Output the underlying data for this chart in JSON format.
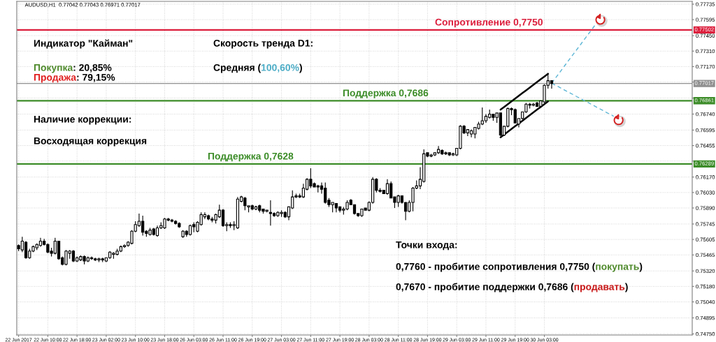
{
  "chart_data": {
    "type": "candlestick",
    "title": "AUDUSD,H1  0.77042 0.77043 0.76971 0.77017",
    "color": "#000000",
    "categories": [
      "22 Jun 2017",
      null,
      null,
      null,
      null,
      null,
      null,
      null,
      "22 Jun 10:00",
      null,
      null,
      null,
      null,
      null,
      null,
      null,
      "22 Jun 18:00",
      null,
      null,
      null,
      null,
      null,
      null,
      null,
      "23 Jun 02:00",
      null,
      null,
      null,
      null,
      null,
      null,
      null,
      "23 Jun 10:00",
      null,
      null,
      null,
      null,
      null,
      null,
      null,
      "23 Jun 18:00",
      null,
      null,
      null,
      null,
      null,
      null,
      null,
      "26 Jun 03:00",
      null,
      null,
      null,
      null,
      null,
      null,
      null,
      "26 Jun 11:00",
      null,
      null,
      null,
      null,
      null,
      null,
      null,
      "26 Jun 19:00",
      null,
      null,
      null,
      null,
      null,
      null,
      null,
      "27 Jun 03:00",
      null,
      null,
      null,
      null,
      null,
      null,
      null,
      "27 Jun 11:00",
      null,
      null,
      null,
      null,
      null,
      null,
      null,
      "27 Jun 19:00",
      null,
      null,
      null,
      null,
      null,
      null,
      null,
      "28 Jun 03:00",
      null,
      null,
      null,
      null,
      null,
      null,
      null,
      "28 Jun 11:00",
      null,
      null,
      null,
      null,
      null,
      null,
      null,
      "28 Jun 19:00",
      null,
      null,
      null,
      null,
      null,
      null,
      null,
      "29 Jun 03:00",
      null,
      null,
      null,
      null,
      null,
      null,
      null,
      "29 Jun 11:00",
      null,
      null,
      null,
      null,
      null,
      null,
      null,
      "29 Jun 19:00",
      null,
      null,
      null,
      null,
      null,
      null,
      null,
      "30 Jun 03:00",
      null,
      null,
      null,
      null,
      null,
      null,
      null,
      null,
      null,
      null,
      null,
      null,
      null,
      null,
      null,
      null,
      null,
      null,
      null,
      null,
      null,
      null,
      null,
      null,
      null,
      null,
      null,
      null,
      null,
      null,
      null,
      null,
      null,
      null,
      null,
      null,
      null,
      null,
      null,
      null
    ],
    "ohlc": [
      [
        0.7555,
        0.7556,
        0.755,
        0.7552
      ],
      [
        0.7551,
        0.7563,
        0.7549,
        0.7559
      ],
      [
        0.7558,
        0.7559,
        0.7543,
        0.7544
      ],
      [
        0.7544,
        0.7552,
        0.7543,
        0.755
      ],
      [
        0.755,
        0.7555,
        0.7549,
        0.7554
      ],
      [
        0.7553,
        0.7557,
        0.7551,
        0.7556
      ],
      [
        0.7555,
        0.7562,
        0.7554,
        0.7559
      ],
      [
        0.7559,
        0.7561,
        0.7555,
        0.7556
      ],
      [
        0.7556,
        0.7557,
        0.7548,
        0.7549
      ],
      [
        0.755,
        0.7553,
        0.7545,
        0.7548
      ],
      [
        0.7548,
        0.7562,
        0.7547,
        0.7559
      ],
      [
        0.7559,
        0.7559,
        0.7542,
        0.7543
      ],
      [
        0.7544,
        0.7545,
        0.7537,
        0.7538
      ],
      [
        0.7538,
        0.7551,
        0.7537,
        0.755
      ],
      [
        0.7548,
        0.7551,
        0.7543,
        0.755
      ],
      [
        0.755,
        0.7551,
        0.754,
        0.7541
      ],
      [
        0.7541,
        0.7545,
        0.754,
        0.7544
      ],
      [
        0.7542,
        0.7546,
        0.7541,
        0.7545
      ],
      [
        0.7545,
        0.7546,
        0.7538,
        0.7541
      ],
      [
        0.7541,
        0.7545,
        0.754,
        0.7544
      ],
      [
        0.7544,
        0.7545,
        0.7542,
        0.7543
      ],
      [
        0.7543,
        0.7544,
        0.7541,
        0.7542
      ],
      [
        0.7542,
        0.7544,
        0.754,
        0.7543
      ],
      [
        0.7543,
        0.7544,
        0.754,
        0.7542
      ],
      [
        0.7541,
        0.7544,
        0.754,
        0.7544
      ],
      [
        0.7544,
        0.755,
        0.7543,
        0.7549
      ],
      [
        0.7547,
        0.7549,
        0.7543,
        0.7548
      ],
      [
        0.7547,
        0.7552,
        0.7546,
        0.755
      ],
      [
        0.755,
        0.7555,
        0.7549,
        0.7554
      ],
      [
        0.7554,
        0.7556,
        0.7553,
        0.7555
      ],
      [
        0.7555,
        0.7559,
        0.7554,
        0.7558
      ],
      [
        0.7557,
        0.7569,
        0.7556,
        0.7568
      ],
      [
        0.7568,
        0.7577,
        0.7567,
        0.7574
      ],
      [
        0.7573,
        0.7584,
        0.7572,
        0.7577
      ],
      [
        0.7577,
        0.7582,
        0.7564,
        0.7567
      ],
      [
        0.7568,
        0.7569,
        0.7563,
        0.7566
      ],
      [
        0.7565,
        0.7571,
        0.7564,
        0.7569
      ],
      [
        0.757,
        0.7571,
        0.7564,
        0.7565
      ],
      [
        0.7564,
        0.7573,
        0.7563,
        0.7571
      ],
      [
        0.7571,
        0.7576,
        0.757,
        0.7573
      ],
      [
        0.7571,
        0.758,
        0.757,
        0.7579
      ],
      [
        0.7579,
        0.758,
        0.7577,
        0.7578
      ],
      [
        0.7578,
        0.7579,
        0.7576,
        0.7577
      ],
      [
        0.7577,
        0.7578,
        0.7574,
        0.7575
      ],
      [
        0.7575,
        0.7576,
        0.7571,
        0.7572
      ],
      [
        0.7563,
        0.7569,
        0.7562,
        0.7568
      ],
      [
        0.7568,
        0.7569,
        0.7563,
        0.7565
      ],
      [
        0.7565,
        0.7574,
        0.7564,
        0.7573
      ],
      [
        0.7574,
        0.7576,
        0.7567,
        0.7572
      ],
      [
        0.7568,
        0.7577,
        0.7567,
        0.7576
      ],
      [
        0.7574,
        0.7585,
        0.7573,
        0.7583
      ],
      [
        0.7581,
        0.7585,
        0.7579,
        0.7583
      ],
      [
        0.7582,
        0.7583,
        0.7578,
        0.7579
      ],
      [
        0.7579,
        0.7581,
        0.7576,
        0.7578
      ],
      [
        0.7578,
        0.7584,
        0.7575,
        0.7583
      ],
      [
        0.7581,
        0.7592,
        0.758,
        0.7587
      ],
      [
        0.7587,
        0.7588,
        0.7572,
        0.7573
      ],
      [
        0.7573,
        0.7576,
        0.7568,
        0.7574
      ],
      [
        0.7574,
        0.7576,
        0.7571,
        0.7573
      ],
      [
        0.7573,
        0.7577,
        0.7569,
        0.7574
      ],
      [
        0.7571,
        0.7599,
        0.757,
        0.7597
      ],
      [
        0.7595,
        0.76,
        0.7594,
        0.7599
      ],
      [
        0.7598,
        0.7599,
        0.7587,
        0.7591
      ],
      [
        0.759,
        0.7591,
        0.7585,
        0.7591
      ],
      [
        0.7591,
        0.7592,
        0.7587,
        0.7588
      ],
      [
        0.7588,
        0.7591,
        0.7587,
        0.759
      ],
      [
        0.7591,
        0.7592,
        0.7585,
        0.7587
      ],
      [
        0.7588,
        0.7588,
        0.7584,
        0.7586
      ],
      [
        0.7586,
        0.7587,
        0.7585,
        0.7587
      ],
      [
        0.7585,
        0.7596,
        0.7573,
        0.7584
      ],
      [
        0.7584,
        0.7585,
        0.7581,
        0.7582
      ],
      [
        0.7582,
        0.7586,
        0.7581,
        0.7585
      ],
      [
        0.7584,
        0.7587,
        0.7581,
        0.7585
      ],
      [
        0.7585,
        0.7586,
        0.758,
        0.7581
      ],
      [
        0.7581,
        0.759,
        0.7578,
        0.759
      ],
      [
        0.7589,
        0.7605,
        0.7588,
        0.7599
      ],
      [
        0.7599,
        0.7602,
        0.7598,
        0.76
      ],
      [
        0.76,
        0.7602,
        0.7598,
        0.7599
      ],
      [
        0.7599,
        0.7611,
        0.7598,
        0.7607
      ],
      [
        0.7606,
        0.7616,
        0.7605,
        0.7615
      ],
      [
        0.7615,
        0.7625,
        0.7607,
        0.7609
      ],
      [
        0.7611,
        0.7612,
        0.7608,
        0.7608
      ],
      [
        0.7609,
        0.761,
        0.7603,
        0.7608
      ],
      [
        0.7609,
        0.7612,
        0.7602,
        0.7606
      ],
      [
        0.7607,
        0.7612,
        0.7593,
        0.7594
      ],
      [
        0.7596,
        0.7598,
        0.759,
        0.7592
      ],
      [
        0.7592,
        0.7594,
        0.7585,
        0.7594
      ],
      [
        0.7593,
        0.7593,
        0.7585,
        0.7589
      ],
      [
        0.759,
        0.759,
        0.7585,
        0.7587
      ],
      [
        0.7587,
        0.759,
        0.7583,
        0.7588
      ],
      [
        0.7588,
        0.7596,
        0.7587,
        0.7594
      ],
      [
        0.7596,
        0.7597,
        0.7592,
        0.7592
      ],
      [
        0.7592,
        0.7592,
        0.7583,
        0.7584
      ],
      [
        0.7584,
        0.7584,
        0.7581,
        0.7582
      ],
      [
        0.7582,
        0.7588,
        0.7581,
        0.7588
      ],
      [
        0.7589,
        0.7589,
        0.7587,
        0.7587
      ],
      [
        0.7587,
        0.7595,
        0.7586,
        0.7594
      ],
      [
        0.7594,
        0.7617,
        0.7593,
        0.7615
      ],
      [
        0.7615,
        0.7616,
        0.7603,
        0.7605
      ],
      [
        0.7605,
        0.7607,
        0.7603,
        0.7604
      ],
      [
        0.7605,
        0.7605,
        0.7602,
        0.7602
      ],
      [
        0.7602,
        0.7615,
        0.7601,
        0.7611
      ],
      [
        0.7611,
        0.7613,
        0.7598,
        0.7598
      ],
      [
        0.7599,
        0.7599,
        0.7589,
        0.7594
      ],
      [
        0.7594,
        0.7601,
        0.759,
        0.76
      ],
      [
        0.76,
        0.76,
        0.7593,
        0.7594
      ],
      [
        0.7594,
        0.7594,
        0.7578,
        0.7586
      ],
      [
        0.7586,
        0.7596,
        0.7585,
        0.7594
      ],
      [
        0.7594,
        0.7608,
        0.7586,
        0.7607
      ],
      [
        0.7607,
        0.7614,
        0.7606,
        0.7609
      ],
      [
        0.7609,
        0.7626,
        0.7606,
        0.7615
      ],
      [
        0.7613,
        0.7642,
        0.7612,
        0.7638
      ],
      [
        0.7639,
        0.7639,
        0.7635,
        0.7636
      ],
      [
        0.7636,
        0.7638,
        0.7635,
        0.7637
      ],
      [
        0.7637,
        0.7639,
        0.7636,
        0.7639
      ],
      [
        0.7639,
        0.7645,
        0.7638,
        0.7642
      ],
      [
        0.7641,
        0.7642,
        0.7637,
        0.7638
      ],
      [
        0.7638,
        0.764,
        0.7637,
        0.7639
      ],
      [
        0.7639,
        0.7639,
        0.7636,
        0.7637
      ],
      [
        0.7637,
        0.7639,
        0.7636,
        0.7638
      ],
      [
        0.7637,
        0.7643,
        0.7636,
        0.7643
      ],
      [
        0.7643,
        0.7664,
        0.7642,
        0.7663
      ],
      [
        0.7663,
        0.7664,
        0.7656,
        0.7657
      ],
      [
        0.7657,
        0.766,
        0.7654,
        0.766
      ],
      [
        0.7656,
        0.766,
        0.7653,
        0.7659
      ],
      [
        0.7656,
        0.7662,
        0.7652,
        0.7662
      ],
      [
        0.7661,
        0.7667,
        0.766,
        0.7665
      ],
      [
        0.7665,
        0.768,
        0.7664,
        0.7668
      ],
      [
        0.7668,
        0.7674,
        0.7666,
        0.7672
      ],
      [
        0.7671,
        0.7678,
        0.767,
        0.7674
      ],
      [
        0.7674,
        0.7674,
        0.7668,
        0.7671
      ],
      [
        0.7671,
        0.7675,
        0.7666,
        0.7675
      ],
      [
        0.7675,
        0.7675,
        0.7654,
        0.7655
      ],
      [
        0.7655,
        0.7663,
        0.7654,
        0.7663
      ],
      [
        0.7663,
        0.768,
        0.7662,
        0.7679
      ],
      [
        0.7679,
        0.768,
        0.7673,
        0.7678
      ],
      [
        0.7678,
        0.7679,
        0.7666,
        0.7666
      ],
      [
        0.7665,
        0.767,
        0.7662,
        0.767
      ],
      [
        0.767,
        0.7676,
        0.7669,
        0.7676
      ],
      [
        0.7676,
        0.7684,
        0.7675,
        0.7683
      ],
      [
        0.7683,
        0.7684,
        0.7679,
        0.7682
      ],
      [
        0.7682,
        0.7684,
        0.7681,
        0.7683
      ],
      [
        0.7684,
        0.7685,
        0.7681,
        0.7681
      ],
      [
        0.7681,
        0.7686,
        0.768,
        0.7686
      ],
      [
        0.7685,
        0.7701,
        0.7684,
        0.77
      ],
      [
        0.77,
        0.7711,
        0.7697,
        0.77042
      ],
      [
        0.77042,
        0.77043,
        0.76971,
        0.77017
      ],
      null,
      null,
      null,
      null,
      null,
      null,
      null,
      null,
      null,
      null,
      null,
      null,
      null,
      null,
      null,
      null,
      null,
      null,
      null,
      null,
      null,
      null,
      null,
      null,
      null,
      null,
      null,
      null,
      null,
      null,
      null,
      null,
      null,
      null,
      null,
      null,
      null,
      null
    ],
    "series": [
      {
        "type": "line",
        "color": "#000000",
        "values": [
          null,
          null,
          null,
          null,
          null,
          null,
          null,
          null,
          null,
          null,
          null,
          null,
          null,
          null,
          null,
          null,
          null,
          null,
          null,
          null,
          null,
          null,
          null,
          null,
          null,
          null,
          null,
          null,
          null,
          null,
          null,
          null,
          null,
          null,
          null,
          null,
          null,
          null,
          null,
          null,
          null,
          null,
          null,
          null,
          null,
          null,
          null,
          null,
          null,
          null,
          null,
          null,
          null,
          null,
          null,
          null,
          null,
          null,
          null,
          null,
          null,
          null,
          null,
          null,
          null,
          null,
          null,
          null,
          null,
          null,
          null,
          null,
          null,
          null,
          null,
          null,
          null,
          null,
          null,
          null,
          null,
          null,
          null,
          null,
          null,
          null,
          null,
          null,
          null,
          null,
          null,
          null,
          null,
          null,
          null,
          null,
          null,
          null,
          null,
          null,
          null,
          null,
          null,
          null,
          null,
          null,
          null,
          null,
          null,
          null,
          null,
          null,
          null,
          null,
          null,
          null,
          null,
          null,
          null,
          null,
          null,
          null,
          null,
          null,
          null,
          null,
          null,
          null,
          null,
          null,
          null,
          null,
          0.7678,
          0.76805,
          0.7683,
          0.76855,
          0.7688,
          0.76905,
          0.7693,
          0.76955,
          0.7698,
          0.77005,
          0.7703,
          0.77055,
          0.7708,
          0.77105,
          null,
          null,
          null,
          null,
          null,
          null,
          null,
          null,
          null,
          null,
          null,
          null,
          null,
          null,
          null,
          null,
          null,
          null,
          null,
          null,
          null,
          null,
          null,
          null,
          null,
          null,
          null,
          null,
          null,
          null,
          null,
          null,
          null,
          null,
          null,
          null,
          null,
          null,
          null
        ]
      },
      {
        "type": "line",
        "color": "#000000",
        "values": [
          null,
          null,
          null,
          null,
          null,
          null,
          null,
          null,
          null,
          null,
          null,
          null,
          null,
          null,
          null,
          null,
          null,
          null,
          null,
          null,
          null,
          null,
          null,
          null,
          null,
          null,
          null,
          null,
          null,
          null,
          null,
          null,
          null,
          null,
          null,
          null,
          null,
          null,
          null,
          null,
          null,
          null,
          null,
          null,
          null,
          null,
          null,
          null,
          null,
          null,
          null,
          null,
          null,
          null,
          null,
          null,
          null,
          null,
          null,
          null,
          null,
          null,
          null,
          null,
          null,
          null,
          null,
          null,
          null,
          null,
          null,
          null,
          null,
          null,
          null,
          null,
          null,
          null,
          null,
          null,
          null,
          null,
          null,
          null,
          null,
          null,
          null,
          null,
          null,
          null,
          null,
          null,
          null,
          null,
          null,
          null,
          null,
          null,
          null,
          null,
          null,
          null,
          null,
          null,
          null,
          null,
          null,
          null,
          null,
          null,
          null,
          null,
          null,
          null,
          null,
          null,
          null,
          null,
          null,
          null,
          null,
          null,
          null,
          null,
          null,
          null,
          null,
          null,
          null,
          null,
          null,
          null,
          0.7653,
          0.76555,
          0.7658,
          0.76605,
          0.7663,
          0.76655,
          0.7668,
          0.76705,
          0.7673,
          0.76755,
          0.7678,
          0.76805,
          0.7683,
          0.76855,
          null,
          null,
          null,
          null,
          null,
          null,
          null,
          null,
          null,
          null,
          null,
          null,
          null,
          null,
          null,
          null,
          null,
          null,
          null,
          null,
          null,
          null,
          null,
          null,
          null,
          null,
          null,
          null,
          null,
          null,
          null,
          null,
          null,
          null,
          null,
          null,
          null,
          null,
          null
        ]
      },
      {
        "type": "line",
        "color": "#5bb5d5",
        "line_style": "dashed",
        "values": [
          null,
          null,
          null,
          null,
          null,
          null,
          null,
          null,
          null,
          null,
          null,
          null,
          null,
          null,
          null,
          null,
          null,
          null,
          null,
          null,
          null,
          null,
          null,
          null,
          null,
          null,
          null,
          null,
          null,
          null,
          null,
          null,
          null,
          null,
          null,
          null,
          null,
          null,
          null,
          null,
          null,
          null,
          null,
          null,
          null,
          null,
          null,
          null,
          null,
          null,
          null,
          null,
          null,
          null,
          null,
          null,
          null,
          null,
          null,
          null,
          null,
          null,
          null,
          null,
          null,
          null,
          null,
          null,
          null,
          null,
          null,
          null,
          null,
          null,
          null,
          null,
          null,
          null,
          null,
          null,
          null,
          null,
          null,
          null,
          null,
          null,
          null,
          null,
          null,
          null,
          null,
          null,
          null,
          null,
          null,
          null,
          null,
          null,
          null,
          null,
          null,
          null,
          null,
          null,
          null,
          null,
          null,
          null,
          null,
          null,
          null,
          null,
          null,
          null,
          null,
          null,
          null,
          null,
          null,
          null,
          null,
          null,
          null,
          null,
          null,
          null,
          null,
          null,
          null,
          null,
          null,
          null,
          null,
          null,
          null,
          null,
          null,
          null,
          null,
          null,
          null,
          null,
          null,
          null,
          null,
          null,
          0.7702,
          0.77064,
          0.77108,
          0.77153,
          0.77197,
          0.77241,
          0.77285,
          0.77329,
          0.77373,
          0.77418,
          0.77462,
          0.77506,
          0.7755,
          null,
          null,
          null,
          null,
          null,
          null,
          null,
          null,
          null,
          null,
          null,
          null,
          null,
          null,
          null,
          null,
          null,
          null,
          null,
          null,
          null,
          null,
          null,
          null,
          null,
          null
        ]
      },
      {
        "type": "line",
        "color": "#5bb5d5",
        "line_style": "dashed",
        "values": [
          null,
          null,
          null,
          null,
          null,
          null,
          null,
          null,
          null,
          null,
          null,
          null,
          null,
          null,
          null,
          null,
          null,
          null,
          null,
          null,
          null,
          null,
          null,
          null,
          null,
          null,
          null,
          null,
          null,
          null,
          null,
          null,
          null,
          null,
          null,
          null,
          null,
          null,
          null,
          null,
          null,
          null,
          null,
          null,
          null,
          null,
          null,
          null,
          null,
          null,
          null,
          null,
          null,
          null,
          null,
          null,
          null,
          null,
          null,
          null,
          null,
          null,
          null,
          null,
          null,
          null,
          null,
          null,
          null,
          null,
          null,
          null,
          null,
          null,
          null,
          null,
          null,
          null,
          null,
          null,
          null,
          null,
          null,
          null,
          null,
          null,
          null,
          null,
          null,
          null,
          null,
          null,
          null,
          null,
          null,
          null,
          null,
          null,
          null,
          null,
          null,
          null,
          null,
          null,
          null,
          null,
          null,
          null,
          null,
          null,
          null,
          null,
          null,
          null,
          null,
          null,
          null,
          null,
          null,
          null,
          null,
          null,
          null,
          null,
          null,
          null,
          null,
          null,
          null,
          null,
          null,
          null,
          null,
          null,
          null,
          null,
          null,
          null,
          null,
          null,
          null,
          null,
          null,
          null,
          null,
          null,
          0.7702,
          0.77002,
          0.76985,
          0.76967,
          0.76949,
          0.76932,
          0.76914,
          0.76896,
          0.76879,
          0.76861,
          0.76844,
          0.76826,
          0.76808,
          0.76791,
          0.76773,
          0.76755,
          0.76738,
          0.7672,
          null,
          null,
          null,
          null,
          null,
          null,
          null,
          null,
          null,
          null,
          null,
          null,
          null,
          null,
          null,
          null,
          null,
          null,
          null,
          null,
          null
        ]
      }
    ],
    "ylim": [
      0.7474,
      0.7776
    ],
    "yticks": [
      0.77735,
      0.77595,
      {
        "value": 0.7745,
        "label": "0.77450"
      },
      {
        "value": 0.7731,
        "label": "0.77310"
      },
      {
        "value": 0.7717,
        "label": "0.77170"
      },
      {
        "value": 0.7703,
        "label": null
      },
      {
        "value": 0.76885,
        "label": null
      },
      {
        "value": 0.7674,
        "label": "0.76740"
      },
      0.76595,
      0.76455,
      {
        "value": 0.76315,
        "label": null
      },
      {
        "value": 0.7617,
        "label": "0.76170"
      },
      {
        "value": 0.7603,
        "label": "0.76030"
      },
      {
        "value": 0.7589,
        "label": "0.75890"
      },
      0.75745,
      0.75605,
      0.75465,
      {
        "value": 0.7532,
        "label": "0.75320"
      },
      {
        "value": 0.7518,
        "label": "0.75180"
      },
      {
        "value": 0.7504,
        "label": "0.75040"
      },
      0.74895,
      {
        "value": 0.7475,
        "label": "0.74750"
      }
    ],
    "grid": true,
    "ref_lines": [
      {
        "axis": "y",
        "value": 0.77502,
        "label": "Сопротивление 0,7750",
        "color": "#dc1e3c"
      },
      {
        "axis": "y",
        "value": 0.77017,
        "color": "#909090"
      },
      {
        "axis": "y",
        "value": 0.76861,
        "label": "Поддержка 0,7686",
        "color": "#3c8c28"
      },
      {
        "axis": "y",
        "value": 0.76289,
        "label": "Поддержка 0,7628",
        "color": "#3c8c28"
      }
    ],
    "annotations": [
      "Индикатор \"Кайман\"",
      "Покупка",
      ": 20,85%",
      "Продажа",
      ": 79,15%",
      "Скорость тренда D1:",
      "Средняя (",
      "100,60%",
      ")",
      "Наличие коррекции:",
      "Восходящая коррекция",
      "Точки входа:",
      "0,7760 - пробитие сопротивления 0,7750 (",
      "покупать",
      ")",
      "0,7670 - пробитие поддержки 0,7686 (",
      "продавать",
      ")",
      {
        "text": "0.77502",
        "y": 0.77502
      },
      {
        "text": "0.77017",
        "y": 0.77017
      },
      {
        "text": "0.76861",
        "y": 0.76861
      },
      {
        "text": "0.76289",
        "y": 0.76289
      }
    ]
  }
}
